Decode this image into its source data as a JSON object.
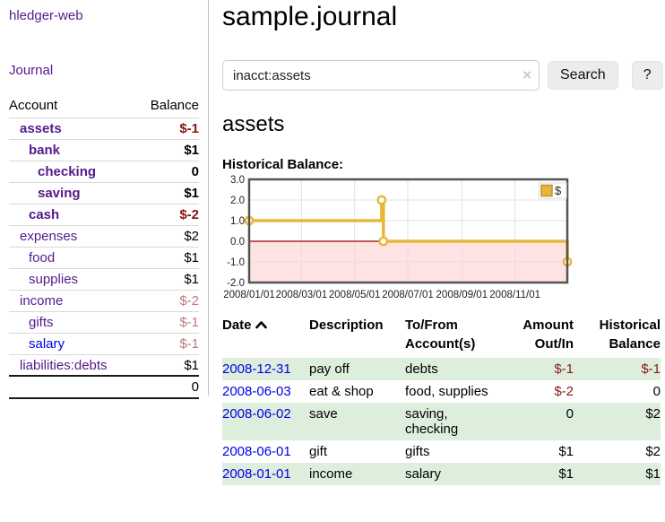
{
  "app": {
    "title": "hledger-web"
  },
  "sidebar": {
    "nav_journal": "Journal",
    "table": {
      "col_account": "Account",
      "col_balance": "Balance",
      "rows": [
        {
          "account": "assets",
          "balance": "$-1",
          "depth": 1,
          "bold": true,
          "neg": "strong",
          "link": "purple"
        },
        {
          "account": "bank",
          "balance": "$1",
          "depth": 2,
          "bold": true,
          "neg": "",
          "link": "purple"
        },
        {
          "account": "checking",
          "balance": "0",
          "depth": 3,
          "bold": true,
          "neg": "",
          "link": "purple"
        },
        {
          "account": "saving",
          "balance": "$1",
          "depth": 3,
          "bold": true,
          "neg": "",
          "link": "purple"
        },
        {
          "account": "cash",
          "balance": "$-2",
          "depth": 2,
          "bold": true,
          "neg": "strong",
          "link": "purple"
        },
        {
          "account": "expenses",
          "balance": "$2",
          "depth": 1,
          "bold": false,
          "neg": "",
          "link": "purple"
        },
        {
          "account": "food",
          "balance": "$1",
          "depth": 2,
          "bold": false,
          "neg": "",
          "link": "purple"
        },
        {
          "account": "supplies",
          "balance": "$1",
          "depth": 2,
          "bold": false,
          "neg": "",
          "link": "purple"
        },
        {
          "account": "income",
          "balance": "$-2",
          "depth": 1,
          "bold": false,
          "neg": "soft",
          "link": "purple"
        },
        {
          "account": "gifts",
          "balance": "$-1",
          "depth": 2,
          "bold": false,
          "neg": "soft",
          "link": "purple"
        },
        {
          "account": "salary",
          "balance": "$-1",
          "depth": 2,
          "bold": false,
          "neg": "soft",
          "link": "blue"
        },
        {
          "account": "liabilities:debts",
          "balance": "$1",
          "depth": 1,
          "bold": false,
          "neg": "",
          "link": "purple"
        }
      ],
      "total": "0"
    }
  },
  "header": {
    "title": "sample.journal"
  },
  "search": {
    "value": "inacct:assets",
    "clear_icon": "×",
    "search_button": "Search",
    "help_button": "?"
  },
  "account_page": {
    "heading": "assets",
    "chart_title": "Historical Balance:"
  },
  "chart_data": {
    "type": "line",
    "step": true,
    "legend": [
      "$"
    ],
    "ylim": [
      -2,
      3
    ],
    "yticks": [
      "3.0",
      "2.0",
      "1.0",
      "0.0",
      "-1.0",
      "-2.0"
    ],
    "xticks": [
      "2008/01/01",
      "2008/03/01",
      "2008/05/01",
      "2008/07/01",
      "2008/09/01",
      "2008/11/01"
    ],
    "x_range": [
      "2008-01-01",
      "2008-12-31"
    ],
    "points": [
      {
        "date": "2008-01-01",
        "value": 1
      },
      {
        "date": "2008-06-01",
        "value": 2
      },
      {
        "date": "2008-06-03",
        "value": 0
      },
      {
        "date": "2008-12-31",
        "value": -1
      }
    ],
    "colors": {
      "line": "#e8b73a",
      "marker_fill": "#fffef8",
      "negative_fill": "#ffe3e3",
      "zero_line": "#990000",
      "border": "#545454",
      "grid": "#e2e2e2",
      "legend_square": "#e8b73a",
      "legend_square_border": "#bd952c"
    }
  },
  "transactions": {
    "headers": {
      "date": {
        "line1": "Date",
        "line2": ""
      },
      "description": {
        "line1": "Description",
        "line2": ""
      },
      "accounts": {
        "line1": "To/From",
        "line2": "Account(s)"
      },
      "amount": {
        "line1": "Amount",
        "line2": "Out/In"
      },
      "balance": {
        "line1": "Historical",
        "line2": "Balance"
      }
    },
    "sort_icon": "chevron-up",
    "rows": [
      {
        "date": "2008-12-31",
        "description": "pay off",
        "accounts": "debts",
        "amount": "$-1",
        "balance": "$-1",
        "amount_neg": true,
        "balance_neg": true,
        "shaded": true
      },
      {
        "date": "2008-06-03",
        "description": "eat & shop",
        "accounts": "food, supplies",
        "amount": "$-2",
        "balance": "0",
        "amount_neg": true,
        "balance_neg": false,
        "shaded": false
      },
      {
        "date": "2008-06-02",
        "description": "save",
        "accounts": "saving, checking",
        "amount": "0",
        "balance": "$2",
        "amount_neg": false,
        "balance_neg": false,
        "shaded": true
      },
      {
        "date": "2008-06-01",
        "description": "gift",
        "accounts": "gifts",
        "amount": "$1",
        "balance": "$2",
        "amount_neg": false,
        "balance_neg": false,
        "shaded": false
      },
      {
        "date": "2008-01-01",
        "description": "income",
        "accounts": "salary",
        "amount": "$1",
        "balance": "$1",
        "amount_neg": false,
        "balance_neg": false,
        "shaded": true
      }
    ]
  }
}
